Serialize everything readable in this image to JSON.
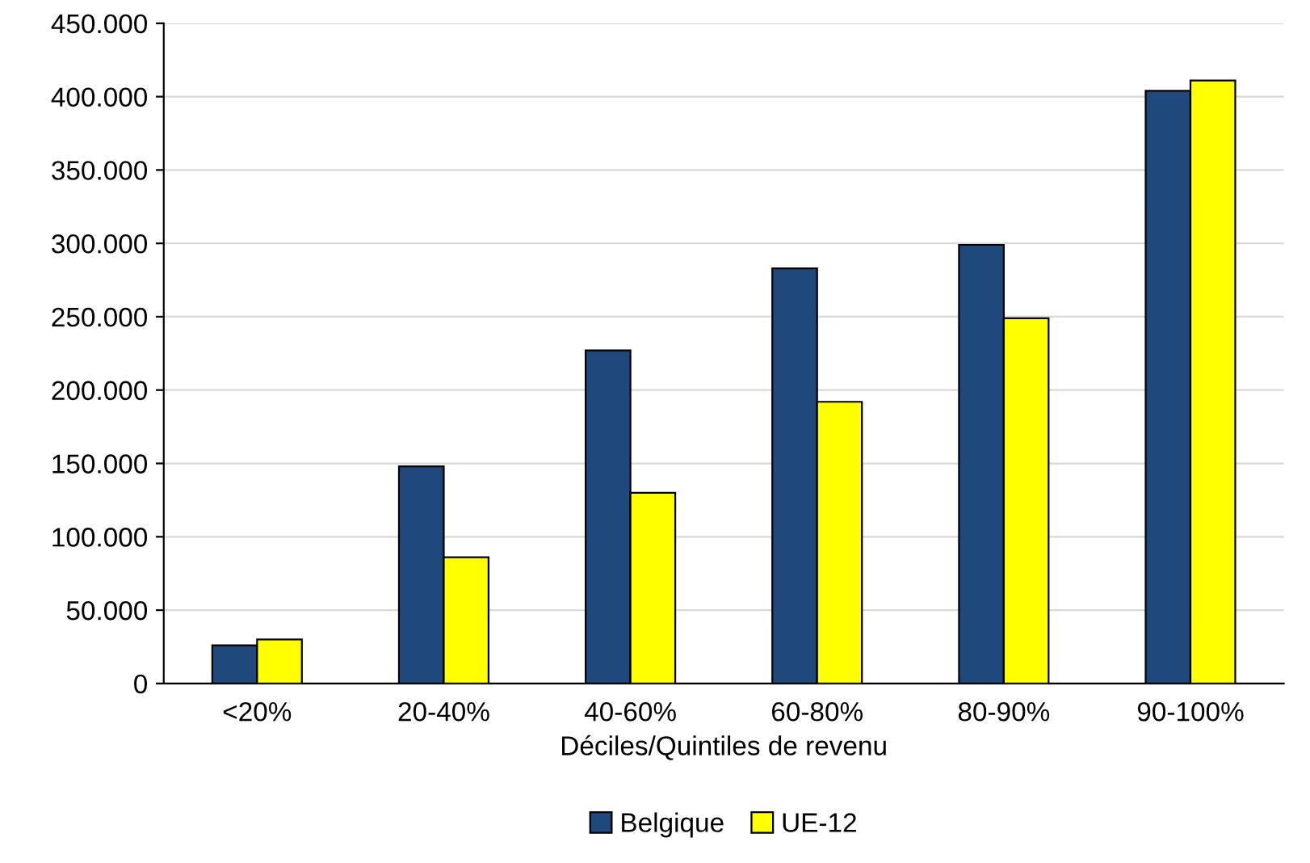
{
  "chart_data": {
    "type": "bar",
    "xlabel": "Déciles/Quintiles de revenu",
    "categories": [
      "<20%",
      "20-40%",
      "40-60%",
      "60-80%",
      "80-90%",
      "90-100%"
    ],
    "series": [
      {
        "name": "Belgique",
        "color": "#1f497d",
        "values": [
          26000,
          148000,
          227000,
          283000,
          299000,
          404000
        ]
      },
      {
        "name": "UE-12",
        "color": "#ffff00",
        "values": [
          30000,
          86000,
          130000,
          192000,
          249000,
          411000
        ]
      }
    ],
    "ylim": [
      0,
      450000
    ],
    "yticks": [
      {
        "value": 0,
        "label": "0"
      },
      {
        "value": 50000,
        "label": "50.000"
      },
      {
        "value": 100000,
        "label": "100.000"
      },
      {
        "value": 150000,
        "label": "150.000"
      },
      {
        "value": 200000,
        "label": "200.000"
      },
      {
        "value": 250000,
        "label": "250.000"
      },
      {
        "value": 300000,
        "label": "300.000"
      },
      {
        "value": 350000,
        "label": "350.000"
      },
      {
        "value": 400000,
        "label": "400.000"
      },
      {
        "value": 450000,
        "label": "450.000"
      }
    ],
    "grid": "y",
    "legend": "bottom"
  }
}
